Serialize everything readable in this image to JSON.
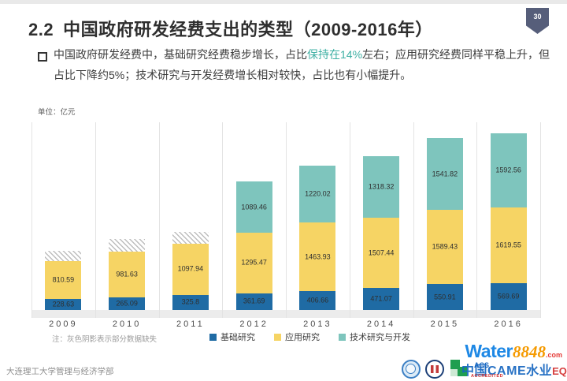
{
  "slide": {
    "page_number": "30",
    "title_number": "2.2",
    "title_text": "中国政府研发经费支出的类型（2009-2016年）",
    "body": {
      "segments": [
        {
          "text": "中国政府研发经费中，基础研究经费稳步增长，占比"
        },
        {
          "text": "保持在14%",
          "accent": true
        },
        {
          "text": "左右；应用研究经费同样平稳上升，但"
        },
        {
          "br": true
        },
        {
          "text": "占比下降约5%；技术研究与开发经费增长相对较快，占比也有小幅提升。"
        }
      ]
    },
    "footer": "大连理工大学管理与经济学部"
  },
  "chart_data": {
    "type": "bar",
    "stacked": true,
    "unit_label": "单位：亿元",
    "categories": [
      "2009",
      "2010",
      "2011",
      "2012",
      "2013",
      "2014",
      "2015",
      "2016"
    ],
    "series": [
      {
        "name": "基础研究",
        "color": "#1f6ba4",
        "values": [
          228.63,
          265.09,
          325.8,
          361.69,
          406.66,
          471.07,
          550.91,
          569.69
        ]
      },
      {
        "name": "应用研究",
        "color": "#f6d464",
        "values": [
          810.59,
          981.63,
          1097.94,
          1295.47,
          1463.93,
          1507.44,
          1589.43,
          1619.55
        ]
      },
      {
        "name": "技术研究与开发",
        "color": "#7ec5bd",
        "values": [
          null,
          null,
          null,
          1089.46,
          1220.02,
          1318.32,
          1541.82,
          1592.56
        ]
      }
    ],
    "missing_hatch": {
      "note": "注：灰色阴影表示部分数据缺失",
      "estimated_values": [
        230,
        270,
        250,
        0,
        0,
        0,
        0,
        0
      ]
    },
    "ylim": [
      0,
      4020
    ],
    "legend_position": "bottom",
    "grid": "vertical-category-separators"
  },
  "watermark": {
    "brand_word": "Water",
    "brand_number": "8848",
    "brand_tld": ".com",
    "overlay_text": "中国CAME水业",
    "overlay_suffix": "EQ网",
    "acs_label": "ACS",
    "accredited_label": "ACCREDITED"
  },
  "colors": {
    "accent_teal": "#3fb0a4",
    "badge": "#565e7a",
    "bar_blue": "#1f6ba4",
    "bar_yellow": "#f6d464",
    "bar_teal": "#7ec5bd",
    "axis_band": "#ececec",
    "gridline": "#e3e3e3"
  }
}
